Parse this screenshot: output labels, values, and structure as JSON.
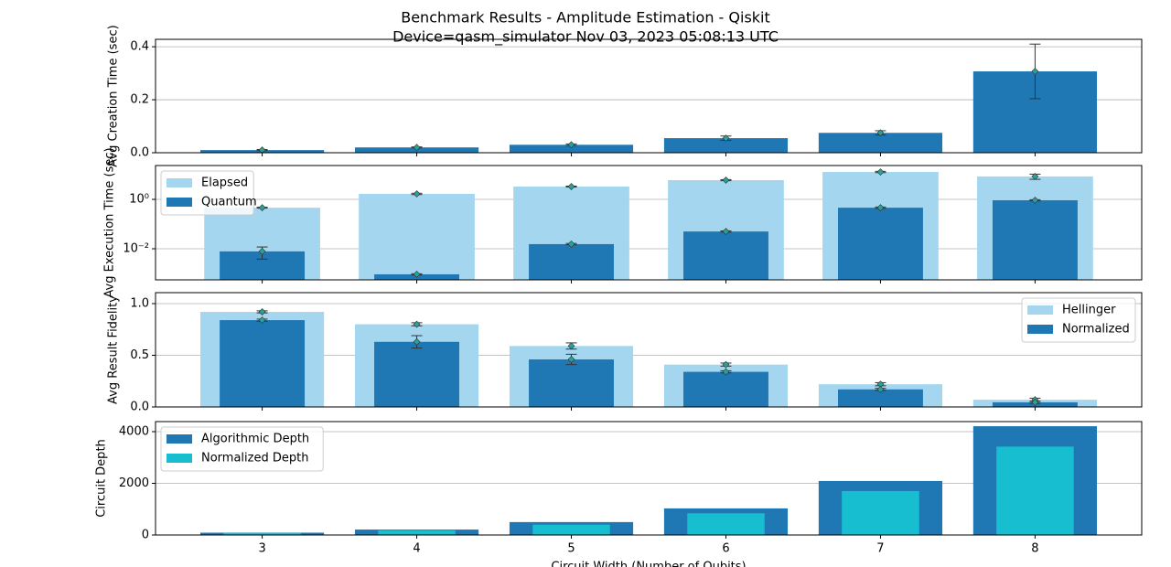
{
  "chart_data": [
    {
      "type": "bar",
      "title": "Benchmark Results - Amplitude Estimation - Qiskit",
      "subtitle": "Device=qasm_simulator  Nov 03, 2023 05:08:13 UTC",
      "ylabel": "Avg Creation Time (sec)",
      "x": [
        3,
        4,
        5,
        6,
        7,
        8
      ],
      "xlim": [
        2.31,
        8.69
      ],
      "values": [
        0.01,
        0.02,
        0.03,
        0.055,
        0.075,
        0.307
      ],
      "errors": [
        0.002,
        0.002,
        0.003,
        0.008,
        0.008,
        0.103
      ],
      "color": "#1f77b4",
      "ylim": [
        0,
        0.428
      ],
      "yticks": [
        {
          "value": 0,
          "label": "0.0"
        },
        0.2,
        0.4
      ],
      "grid": true
    },
    {
      "type": "bar",
      "ylabel": "Avg Execution Time (sec)",
      "x": [
        3,
        4,
        5,
        6,
        7,
        8
      ],
      "xlim": [
        2.31,
        8.69
      ],
      "yscale": "log",
      "series": [
        {
          "name": "Elapsed",
          "color": "#a4d7ef",
          "values": [
            0.46,
            1.67,
            3.3,
            6.0,
            12.9,
            8.5
          ],
          "errors": [
            0.02,
            0.1,
            0.15,
            0.3,
            0.8,
            2.0
          ]
        },
        {
          "name": "Quantum",
          "color": "#1f77b4",
          "values": [
            0.0078,
            0.00092,
            0.0154,
            0.05,
            0.46,
            0.92
          ],
          "errors": [
            0.004,
            5e-05,
            0.001,
            0.003,
            0.03,
            0.05
          ]
        }
      ],
      "ylim": [
        0.00055,
        23.5
      ],
      "yticks": [
        {
          "value": 0.01,
          "label": "10⁻²"
        },
        {
          "value": 1,
          "label": "10⁰"
        }
      ],
      "grid": true,
      "legend": "upper left"
    },
    {
      "type": "bar",
      "ylabel": "Avg Result Fidelity",
      "x": [
        3,
        4,
        5,
        6,
        7,
        8
      ],
      "xlim": [
        2.31,
        8.69
      ],
      "series": [
        {
          "name": "Hellinger",
          "color": "#a4d7ef",
          "values": [
            0.92,
            0.8,
            0.59,
            0.41,
            0.22,
            0.07
          ],
          "errors": [
            0.01,
            0.015,
            0.03,
            0.015,
            0.015,
            0.015
          ]
        },
        {
          "name": "Normalized",
          "color": "#1f77b4",
          "values": [
            0.84,
            0.63,
            0.46,
            0.34,
            0.17,
            0.045
          ],
          "errors": [
            0.01,
            0.06,
            0.05,
            0.01,
            0.01,
            0.01
          ]
        }
      ],
      "ylim": [
        0,
        1.106
      ],
      "yticks": [
        {
          "value": 0,
          "label": "0.0"
        },
        0.5,
        {
          "value": 1,
          "label": "1.0"
        }
      ],
      "grid": true,
      "legend": "upper right"
    },
    {
      "type": "bar",
      "ylabel": "Circuit Depth",
      "xlabel": "Circuit Width (Number of Qubits)",
      "x": [
        3,
        4,
        5,
        6,
        7,
        8
      ],
      "xlim": [
        2.31,
        8.69
      ],
      "xticks": [
        3,
        4,
        5,
        6,
        7,
        8
      ],
      "series": [
        {
          "name": "Algorithmic Depth",
          "color": "#1f77b4",
          "values": [
            90,
            210,
            500,
            1030,
            2090,
            4210
          ]
        },
        {
          "name": "Normalized Depth",
          "color": "#17becf",
          "values": [
            80,
            180,
            400,
            840,
            1700,
            3420
          ]
        }
      ],
      "ylim": [
        0,
        4389
      ],
      "yticks": [
        0,
        2000,
        4000
      ],
      "grid": true,
      "legend": "upper left"
    }
  ]
}
